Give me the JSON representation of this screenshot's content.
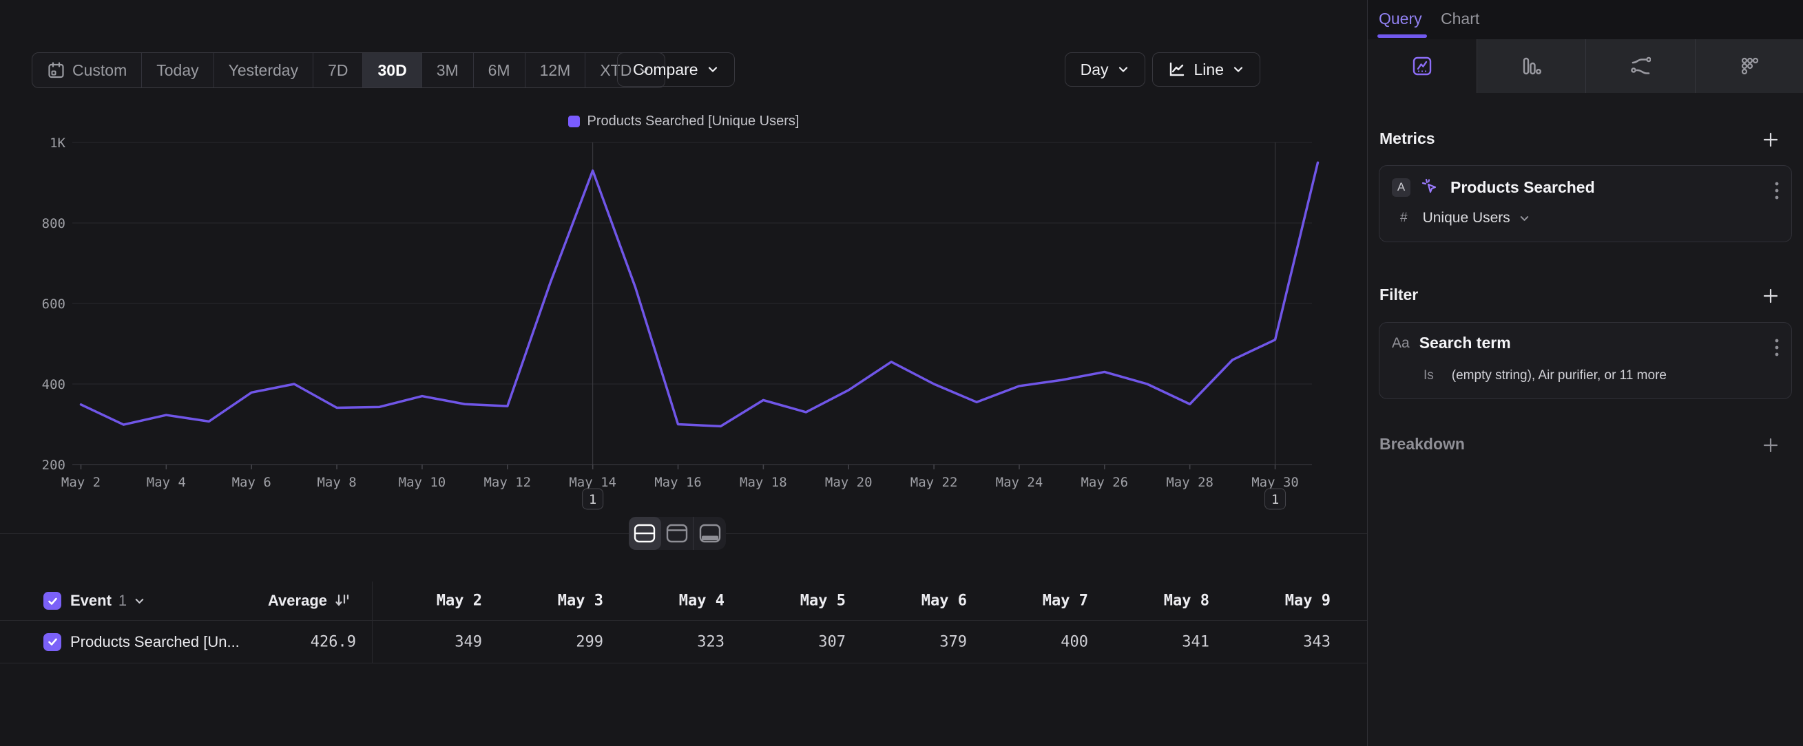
{
  "toolbar": {
    "ranges": [
      {
        "label": "Custom",
        "icon": "calendar"
      },
      {
        "label": "Today"
      },
      {
        "label": "Yesterday"
      },
      {
        "label": "7D"
      },
      {
        "label": "30D",
        "selected": true
      },
      {
        "label": "3M"
      },
      {
        "label": "6M"
      },
      {
        "label": "12M"
      },
      {
        "label": "XTD",
        "chevron": true
      }
    ],
    "compare_label": "Compare",
    "granularity_label": "Day",
    "chart_type_label": "Line"
  },
  "legend": {
    "series_label": "Products Searched [Unique Users]",
    "swatch_color": "#7a5cff"
  },
  "chart_data": {
    "type": "line",
    "title": "",
    "x": [
      "May 2",
      "May 3",
      "May 4",
      "May 5",
      "May 6",
      "May 7",
      "May 8",
      "May 9",
      "May 10",
      "May 11",
      "May 12",
      "May 13",
      "May 14",
      "May 15",
      "May 16",
      "May 17",
      "May 18",
      "May 19",
      "May 20",
      "May 21",
      "May 22",
      "May 23",
      "May 24",
      "May 25",
      "May 26",
      "May 27",
      "May 28",
      "May 29",
      "May 30",
      "May 31"
    ],
    "series": [
      {
        "name": "Products Searched [Unique Users]",
        "values": [
          349,
          299,
          323,
          307,
          379,
          400,
          341,
          343,
          370,
          350,
          345,
          650,
          930,
          640,
          300,
          295,
          360,
          330,
          385,
          455,
          400,
          355,
          395,
          410,
          430,
          400,
          350,
          460,
          510,
          950
        ]
      }
    ],
    "y_ticks": [
      {
        "label": "200",
        "value": 200
      },
      {
        "label": "400",
        "value": 400
      },
      {
        "label": "600",
        "value": 600
      },
      {
        "label": "800",
        "value": 800
      },
      {
        "label": "1K",
        "value": 1000
      }
    ],
    "ylim": [
      200,
      1000
    ],
    "x_tick_step": 2,
    "annotations": [
      {
        "x_index": 12,
        "badge": "1"
      },
      {
        "x_index": 28,
        "badge": "1"
      }
    ],
    "line_color": "#7056e8",
    "legend_position": "top",
    "grid": "horizontal"
  },
  "layout_toggle": {
    "options": [
      "split-view",
      "chart-only-view",
      "table-only-view"
    ],
    "selected_index": 0
  },
  "table": {
    "header": {
      "event_label": "Event",
      "event_count": "1",
      "average_label": "Average"
    },
    "columns": [
      "May 2",
      "May 3",
      "May 4",
      "May 5",
      "May 6",
      "May 7",
      "May 8",
      "May 9"
    ],
    "rows": [
      {
        "label": "Products Searched [Un...",
        "average": "426.9",
        "checked": true,
        "values": [
          "349",
          "299",
          "323",
          "307",
          "379",
          "400",
          "341",
          "343"
        ]
      }
    ]
  },
  "sidebar": {
    "tabs": [
      {
        "label": "Query",
        "active": true
      },
      {
        "label": "Chart",
        "active": false
      }
    ],
    "view_tabs": [
      {
        "icon": "insights",
        "selected": true
      },
      {
        "icon": "funnels"
      },
      {
        "icon": "flows"
      },
      {
        "icon": "retention"
      }
    ],
    "metrics": {
      "title": "Metrics",
      "items": [
        {
          "letter": "A",
          "name": "Products Searched",
          "aggregation_prefix": "#",
          "aggregation": "Unique Users"
        }
      ]
    },
    "filter": {
      "title": "Filter",
      "items": [
        {
          "type_label": "Aa",
          "name": "Search term",
          "operator": "Is",
          "value": "(empty string), Air purifier, or 11 more"
        }
      ]
    },
    "breakdown": {
      "title": "Breakdown"
    }
  },
  "colors": {
    "accent": "#7b61f8",
    "line": "#7056e8",
    "selected_segment": "#2e2f36",
    "panel": "#19191c"
  }
}
